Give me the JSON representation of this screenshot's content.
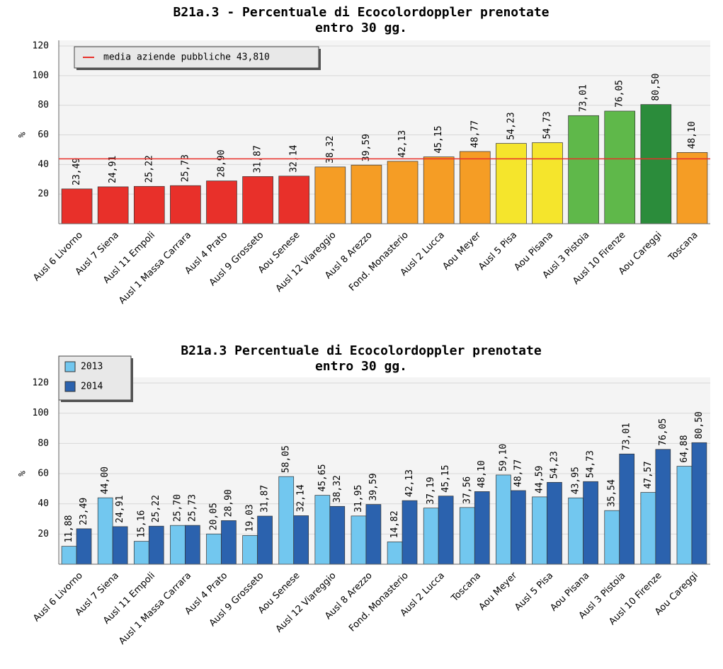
{
  "chart_data": [
    {
      "type": "bar",
      "title": [
        "B21a.3 - Percentuale di Ecocolordoppler prenotate",
        "entro 30 gg."
      ],
      "y_label": "%",
      "categories": [
        "Ausl 6 Livorno",
        "Ausl 7 Siena",
        "Ausl 11 Empoli",
        "Ausl 1 Massa Carrara",
        "Ausl 4 Prato",
        "Ausl 9 Grosseto",
        "Aou Senese",
        "Ausl 12 Viareggio",
        "Ausl 8 Arezzo",
        "Fond. Monasterio",
        "Ausl 2 Lucca",
        "Aou Meyer",
        "Ausl 5 Pisa",
        "Aou Pisana",
        "Ausl 3 Pistoia",
        "Ausl 10 Firenze",
        "Aou Careggi",
        "Toscana"
      ],
      "values": [
        23.49,
        24.91,
        25.22,
        25.73,
        28.9,
        31.87,
        32.14,
        38.32,
        39.59,
        42.13,
        45.15,
        48.77,
        54.23,
        54.73,
        73.01,
        76.05,
        80.5,
        48.1
      ],
      "value_labels": [
        "23,49",
        "24,91",
        "25,22",
        "25,73",
        "28,90",
        "31,87",
        "32,14",
        "38,32",
        "39,59",
        "42,13",
        "45,15",
        "48,77",
        "54,23",
        "54,73",
        "73,01",
        "76,05",
        "80,50",
        "48,10"
      ],
      "colors": [
        "#e8302a",
        "#e8302a",
        "#e8302a",
        "#e8302a",
        "#e8302a",
        "#e8302a",
        "#e8302a",
        "#f59d25",
        "#f59d25",
        "#f59d25",
        "#f59d25",
        "#f59d25",
        "#f5e52c",
        "#f5e52c",
        "#5fb84a",
        "#5fb84a",
        "#2b8c3b",
        "#f59d25"
      ],
      "reference_line": {
        "label": "media aziende pubbliche 43,810",
        "value": 43.81,
        "color": "#e8302a"
      },
      "ylim": [
        0,
        120
      ],
      "yticks": [
        20,
        40,
        60,
        80,
        100,
        120
      ],
      "grid": true
    },
    {
      "type": "grouped_bar",
      "title": [
        "B21a.3 Percentuale di Ecocolordoppler prenotate",
        "entro 30 gg."
      ],
      "y_label": "%",
      "categories": [
        "Ausl 6 Livorno",
        "Ausl 7 Siena",
        "Ausl 11 Empoli",
        "Ausl 1 Massa Carrara",
        "Ausl 4 Prato",
        "Ausl 9 Grosseto",
        "Aou Senese",
        "Ausl 12 Viareggio",
        "Ausl 8 Arezzo",
        "Fond. Monasterio",
        "Ausl 2 Lucca",
        "Toscana",
        "Aou Meyer",
        "Ausl 5 Pisa",
        "Aou Pisana",
        "Ausl 3 Pistoia",
        "Ausl 10 Firenze",
        "Aou Careggi"
      ],
      "series": [
        {
          "name": "2013",
          "color": "#72c7ef",
          "values": [
            11.88,
            44.0,
            15.16,
            25.7,
            20.05,
            19.03,
            58.05,
            45.65,
            31.95,
            14.82,
            37.19,
            37.56,
            59.1,
            44.59,
            43.95,
            35.54,
            47.57,
            64.88
          ],
          "value_labels": [
            "11,88",
            "44,00",
            "15,16",
            "25,70",
            "20,05",
            "19,03",
            "58,05",
            "45,65",
            "31,95",
            "14,82",
            "37,19",
            "37,56",
            "59,10",
            "44,59",
            "43,95",
            "35,54",
            "47,57",
            "64,88"
          ]
        },
        {
          "name": "2014",
          "color": "#2b62ae",
          "values": [
            23.49,
            24.91,
            25.22,
            25.73,
            28.9,
            31.87,
            32.14,
            38.32,
            39.59,
            42.13,
            45.15,
            48.1,
            48.77,
            54.23,
            54.73,
            73.01,
            76.05,
            80.5
          ],
          "value_labels": [
            "23,49",
            "24,91",
            "25,22",
            "25,73",
            "28,90",
            "31,87",
            "32,14",
            "38,32",
            "39,59",
            "42,13",
            "45,15",
            "48,10",
            "48,77",
            "54,23",
            "54,73",
            "73,01",
            "76,05",
            "80,50"
          ]
        }
      ],
      "ylim": [
        0,
        120
      ],
      "yticks": [
        20,
        40,
        60,
        80,
        100,
        120
      ],
      "grid": true
    }
  ]
}
